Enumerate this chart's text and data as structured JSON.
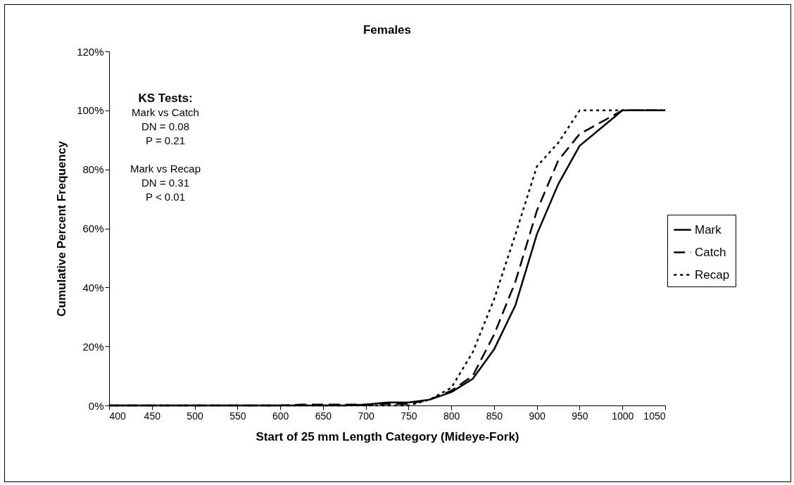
{
  "chart_data": {
    "type": "line",
    "title": "Females",
    "xlabel": "Start of 25 mm Length Category (Mideye-Fork)",
    "ylabel": "Cumulative Percent Frequency",
    "x": [
      400,
      425,
      450,
      475,
      500,
      525,
      550,
      575,
      600,
      625,
      650,
      675,
      700,
      725,
      750,
      775,
      800,
      825,
      850,
      875,
      900,
      925,
      950,
      975,
      1000,
      1025,
      1050
    ],
    "series": [
      {
        "name": "Mark",
        "color": "#000000",
        "line_style": "solid",
        "values": [
          0,
          0,
          0,
          0,
          0,
          0,
          0,
          0,
          0,
          0,
          0,
          0,
          0.3,
          1,
          1,
          2,
          4.5,
          9,
          19,
          34,
          58,
          75,
          88,
          94,
          100,
          100,
          100
        ]
      },
      {
        "name": "Catch",
        "color": "#000000",
        "line_style": "dashed",
        "values": [
          0,
          0,
          0,
          0,
          0,
          0,
          0,
          0,
          0,
          0.3,
          0.3,
          0.3,
          0.3,
          0.5,
          0.5,
          2,
          5,
          10,
          24,
          42,
          66,
          83,
          92,
          96,
          100,
          100,
          100
        ]
      },
      {
        "name": "Recap",
        "color": "#000000",
        "line_style": "dotted",
        "values": [
          0,
          0,
          0,
          0,
          0,
          0,
          0,
          0,
          0,
          0,
          0,
          0,
          0,
          0,
          0,
          2,
          6,
          18,
          36,
          58,
          81,
          89,
          100,
          100,
          100,
          100,
          100
        ]
      }
    ],
    "xlim": [
      400,
      1050
    ],
    "xticks": [
      400,
      450,
      500,
      550,
      600,
      650,
      700,
      750,
      800,
      850,
      900,
      950,
      1000,
      1050
    ],
    "ylim": [
      0,
      120
    ],
    "yticks": [
      {
        "value": 0,
        "label": "0%"
      },
      {
        "value": 20,
        "label": "20%"
      },
      {
        "value": 40,
        "label": "40%"
      },
      {
        "value": 60,
        "label": "60%"
      },
      {
        "value": 80,
        "label": "80%"
      },
      {
        "value": 100,
        "label": "100%"
      },
      {
        "value": 120,
        "label": "120%"
      }
    ],
    "grid": false,
    "legend": "right",
    "annotations": [
      "KS Tests:",
      "Mark vs Catch",
      "DN = 0.08",
      "P = 0.21",
      "Mark vs Recap",
      "DN = 0.31",
      "P < 0.01"
    ]
  }
}
